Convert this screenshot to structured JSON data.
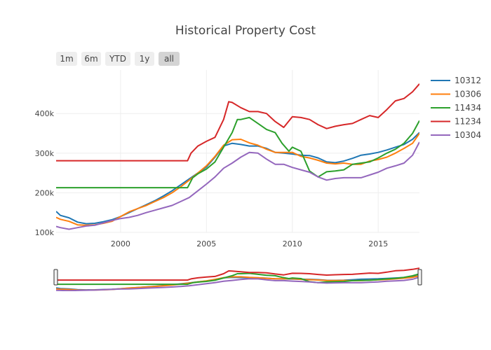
{
  "chart_data": {
    "type": "line",
    "title": "Historical Property Cost",
    "xlabel": "",
    "ylabel": "",
    "xlim": [
      1996.25,
      2017.4
    ],
    "ylim": [
      100000,
      510000
    ],
    "x_ticks": [
      2000,
      2005,
      2010,
      2015
    ],
    "x_tick_labels": [
      "2000",
      "2005",
      "2010",
      "2015"
    ],
    "y_ticks": [
      100000,
      200000,
      300000,
      400000
    ],
    "y_tick_labels": [
      "100k",
      "200k",
      "300k",
      "400k"
    ],
    "grid": true,
    "legend_position": "right",
    "range_selector": {
      "buttons": [
        "1m",
        "6m",
        "YTD",
        "1y",
        "all"
      ],
      "active": "all"
    },
    "range_slider": true,
    "series": [
      {
        "name": "10312",
        "color": "#1f77b4",
        "x": [
          1996.25,
          1996.5,
          1997,
          1997.5,
          1998,
          1998.5,
          1999,
          1999.5,
          2000,
          2000.5,
          2001,
          2001.5,
          2002,
          2002.5,
          2003,
          2003.5,
          2004,
          2004.5,
          2005,
          2005.5,
          2006,
          2006.5,
          2007,
          2007.5,
          2008,
          2008.5,
          2009,
          2009.5,
          2010,
          2010.5,
          2011,
          2011.5,
          2012,
          2012.5,
          2013,
          2013.5,
          2014,
          2014.5,
          2015,
          2015.5,
          2016,
          2016.5,
          2017,
          2017.4
        ],
        "y": [
          153000,
          143000,
          137000,
          126000,
          122000,
          123000,
          127000,
          132000,
          140000,
          150000,
          160000,
          170000,
          180000,
          192000,
          205000,
          220000,
          235000,
          250000,
          265000,
          290000,
          318000,
          325000,
          322000,
          318000,
          318000,
          312000,
          302000,
          300000,
          298000,
          295000,
          294000,
          288000,
          278000,
          276000,
          280000,
          287000,
          295000,
          298000,
          302000,
          308000,
          315000,
          322000,
          335000,
          352000
        ]
      },
      {
        "name": "10306",
        "color": "#ff7f0e",
        "x": [
          1996.25,
          1996.5,
          1997,
          1997.5,
          1998,
          1998.5,
          1999,
          1999.5,
          2000,
          2000.5,
          2001,
          2001.5,
          2002,
          2002.5,
          2003,
          2003.5,
          2004,
          2004.5,
          2005,
          2005.5,
          2006,
          2006.5,
          2007,
          2007.5,
          2008,
          2008.5,
          2009,
          2009.5,
          2010,
          2010.5,
          2011,
          2011.5,
          2012,
          2012.5,
          2013,
          2013.5,
          2014,
          2014.5,
          2015,
          2015.5,
          2016,
          2016.5,
          2017,
          2017.4
        ],
        "y": [
          138000,
          133000,
          128000,
          119000,
          118000,
          119000,
          123000,
          128000,
          140000,
          152000,
          160000,
          168000,
          178000,
          188000,
          200000,
          215000,
          232000,
          250000,
          268000,
          292000,
          320000,
          334000,
          335000,
          326000,
          320000,
          310000,
          302000,
          302000,
          302000,
          292000,
          288000,
          282000,
          275000,
          273000,
          275000,
          272000,
          272000,
          280000,
          284000,
          290000,
          300000,
          312000,
          325000,
          350000
        ]
      },
      {
        "name": "11434",
        "color": "#2ca02c",
        "x": [
          1996.25,
          1997,
          1998,
          1999,
          2000,
          2001,
          2002,
          2003,
          2003.9,
          2004.2,
          2004.5,
          2005,
          2005.5,
          2006,
          2006.5,
          2006.8,
          2007,
          2007.5,
          2008,
          2008.5,
          2009,
          2009.4,
          2009.8,
          2010,
          2010.5,
          2011,
          2011.5,
          2012,
          2012.5,
          2013,
          2013.5,
          2014,
          2014.5,
          2015,
          2015.5,
          2016,
          2016.5,
          2017,
          2017.4
        ],
        "y": [
          213000,
          213000,
          213000,
          213000,
          213000,
          213000,
          213000,
          213000,
          213000,
          238000,
          248000,
          260000,
          278000,
          315000,
          352000,
          385000,
          385000,
          390000,
          375000,
          360000,
          352000,
          325000,
          305000,
          315000,
          305000,
          255000,
          240000,
          253000,
          255000,
          258000,
          272000,
          275000,
          278000,
          288000,
          300000,
          310000,
          325000,
          350000,
          382000
        ]
      },
      {
        "name": "11234",
        "color": "#d62728",
        "x": [
          1996.25,
          1997,
          1998,
          1999,
          2000,
          2001,
          2002,
          2003,
          2003.9,
          2004.1,
          2004.5,
          2005,
          2005.5,
          2006,
          2006.3,
          2006.5,
          2007,
          2007.5,
          2008,
          2008.5,
          2009,
          2009.5,
          2010,
          2010.5,
          2011,
          2011.5,
          2012,
          2012.5,
          2013,
          2013.5,
          2014,
          2014.5,
          2015,
          2015.5,
          2016,
          2016.5,
          2017,
          2017.4
        ],
        "y": [
          281000,
          281000,
          281000,
          281000,
          281000,
          281000,
          281000,
          281000,
          281000,
          300000,
          318000,
          330000,
          340000,
          385000,
          430000,
          428000,
          415000,
          405000,
          405000,
          400000,
          380000,
          365000,
          392000,
          390000,
          385000,
          372000,
          362000,
          368000,
          372000,
          375000,
          385000,
          395000,
          390000,
          410000,
          432000,
          438000,
          455000,
          475000
        ]
      },
      {
        "name": "10304",
        "color": "#9467bd",
        "x": [
          1996.25,
          1996.5,
          1997,
          1997.5,
          1998,
          1998.5,
          1999,
          1999.5,
          2000,
          2000.5,
          2001,
          2001.5,
          2002,
          2002.5,
          2003,
          2003.5,
          2004,
          2004.5,
          2005,
          2005.5,
          2006,
          2006.5,
          2007,
          2007.5,
          2008,
          2008.5,
          2009,
          2009.5,
          2010,
          2010.5,
          2011,
          2011.5,
          2012,
          2012.5,
          2013,
          2013.5,
          2014,
          2014.5,
          2015,
          2015.5,
          2016,
          2016.5,
          2017,
          2017.4
        ],
        "y": [
          115000,
          112000,
          108000,
          112000,
          116000,
          118000,
          124000,
          130000,
          135000,
          138000,
          143000,
          150000,
          156000,
          162000,
          168000,
          178000,
          188000,
          205000,
          222000,
          240000,
          262000,
          275000,
          290000,
          302000,
          300000,
          285000,
          272000,
          272000,
          264000,
          258000,
          252000,
          240000,
          232000,
          236000,
          238000,
          238000,
          238000,
          245000,
          252000,
          262000,
          268000,
          275000,
          295000,
          328000
        ]
      }
    ]
  }
}
